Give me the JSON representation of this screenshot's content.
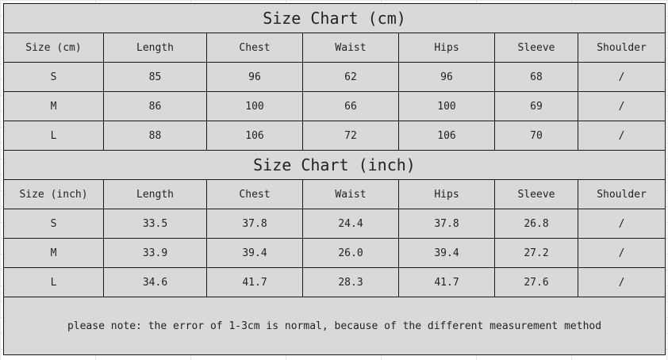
{
  "cm_table": {
    "title": "Size Chart (cm)",
    "headers": [
      "Size (cm)",
      "Length",
      "Chest",
      "Waist",
      "Hips",
      "Sleeve",
      "Shoulder"
    ],
    "rows": [
      [
        "S",
        "85",
        "96",
        "62",
        "96",
        "68",
        "/"
      ],
      [
        "M",
        "86",
        "100",
        "66",
        "100",
        "69",
        "/"
      ],
      [
        "L",
        "88",
        "106",
        "72",
        "106",
        "70",
        "/"
      ]
    ]
  },
  "inch_table": {
    "title": "Size Chart (inch)",
    "headers": [
      "Size (inch)",
      "Length",
      "Chest",
      "Waist",
      "Hips",
      "Sleeve",
      "Shoulder"
    ],
    "rows": [
      [
        "S",
        "33.5",
        "37.8",
        "24.4",
        "37.8",
        "26.8",
        "/"
      ],
      [
        "M",
        "33.9",
        "39.4",
        "26.0",
        "39.4",
        "27.2",
        "/"
      ],
      [
        "L",
        "34.6",
        "41.7",
        "28.3",
        "41.7",
        "27.6",
        "/"
      ]
    ]
  },
  "note": "please note: the error of 1-3cm is normal, because of the different measurement method",
  "colors": {
    "cell_bg": "#d9d9d9",
    "border": "#1a1a1a"
  }
}
